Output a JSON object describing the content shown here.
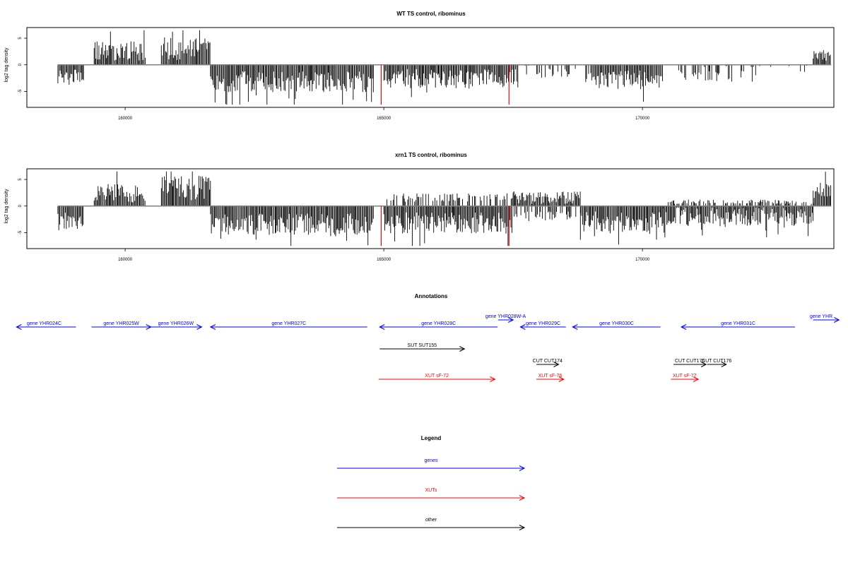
{
  "chart_data": [
    {
      "type": "bar",
      "title": "WT TS control, ribominus",
      "xlabel": "",
      "ylabel": "log2 tag density",
      "xlim": [
        158100,
        173700
      ],
      "ylim": [
        -8,
        7
      ],
      "xticks": [
        160000,
        165000,
        170000
      ],
      "yticks": [
        -5,
        0,
        5
      ],
      "grid": false,
      "segments": [
        {
          "from": 158700,
          "to": 159200,
          "sign": -1,
          "mean": 2.4,
          "jitter": 1.5
        },
        {
          "from": 159200,
          "to": 159400,
          "sign": 0
        },
        {
          "from": 159400,
          "to": 160400,
          "sign": 1,
          "mean": 2.6,
          "jitter": 1.8
        },
        {
          "from": 160400,
          "to": 160700,
          "sign": 0
        },
        {
          "from": 160700,
          "to": 161650,
          "sign": 1,
          "mean": 3.0,
          "jitter": 2.2
        },
        {
          "from": 161650,
          "to": 164800,
          "sign": -1,
          "mean": 3.2,
          "jitter": 2.0
        },
        {
          "from": 164800,
          "to": 165000,
          "sign": 0
        },
        {
          "from": 165000,
          "to": 167600,
          "sign": -1,
          "mean": 2.6,
          "jitter": 1.8
        },
        {
          "from": 167600,
          "to": 169000,
          "sign": -1,
          "mean": 1.2,
          "jitter": 1.5,
          "sparse": 0.25
        },
        {
          "from": 169000,
          "to": 170400,
          "sign": -1,
          "mean": 2.8,
          "jitter": 1.8
        },
        {
          "from": 170400,
          "to": 170700,
          "sign": 0
        },
        {
          "from": 170700,
          "to": 172300,
          "sign": -1,
          "mean": 1.6,
          "jitter": 1.6,
          "sparse": 0.4
        },
        {
          "from": 172300,
          "to": 173300,
          "sign": -1,
          "mean": 0.8,
          "jitter": 1.0,
          "sparse": 0.1
        },
        {
          "from": 173300,
          "to": 173650,
          "sign": 1,
          "mean": 1.8,
          "jitter": 1.2
        }
      ],
      "red_spikes": [
        {
          "x": 164950,
          "y": -7.5
        },
        {
          "x": 167420,
          "y": -7.5
        }
      ]
    },
    {
      "type": "bar",
      "title": "xrn1 TS control, ribominus",
      "xlabel": "",
      "ylabel": "log2 tag density",
      "xlim": [
        158100,
        173700
      ],
      "ylim": [
        -8,
        7
      ],
      "xticks": [
        160000,
        165000,
        170000
      ],
      "yticks": [
        -5,
        0,
        5
      ],
      "grid": false,
      "segments": [
        {
          "from": 158700,
          "to": 159200,
          "sign": -1,
          "mean": 2.8,
          "jitter": 1.8
        },
        {
          "from": 159200,
          "to": 159400,
          "sign": 0
        },
        {
          "from": 159400,
          "to": 160400,
          "sign": 1,
          "mean": 2.4,
          "jitter": 1.8
        },
        {
          "from": 160400,
          "to": 160700,
          "sign": 0
        },
        {
          "from": 160700,
          "to": 161650,
          "sign": 1,
          "mean": 3.4,
          "jitter": 2.3
        },
        {
          "from": 161650,
          "to": 164800,
          "sign": -1,
          "mean": 3.4,
          "jitter": 2.0
        },
        {
          "from": 164800,
          "to": 165000,
          "sign": 0
        },
        {
          "from": 165000,
          "to": 167500,
          "sign": -1,
          "mean": 3.2,
          "jitter": 2.0,
          "dual": 1.6
        },
        {
          "from": 167500,
          "to": 168800,
          "sign": 1,
          "mean": 1.6,
          "jitter": 1.2,
          "dual": 2.0
        },
        {
          "from": 168800,
          "to": 170400,
          "sign": -1,
          "mean": 3.0,
          "jitter": 2.0
        },
        {
          "from": 170400,
          "to": 173300,
          "sign": -1,
          "mean": 2.0,
          "jitter": 1.8,
          "dual": 0.8
        },
        {
          "from": 173300,
          "to": 173650,
          "sign": 1,
          "mean": 2.8,
          "jitter": 1.6
        }
      ],
      "red_spikes": [
        {
          "x": 164950,
          "y": -7.5
        },
        {
          "x": 167420,
          "y": -7.5
        }
      ]
    }
  ],
  "annotations": {
    "title": "Annotations",
    "xlim": [
      158100,
      173700
    ],
    "items": [
      {
        "label": "gene YHR024C",
        "start": 159050,
        "end": 157900,
        "row": 0,
        "kind": "gene"
      },
      {
        "label": "gene YHR025W",
        "start": 159350,
        "end": 160500,
        "row": 0,
        "kind": "gene"
      },
      {
        "label": "gene YHR026W",
        "start": 160480,
        "end": 161480,
        "row": 0,
        "kind": "gene"
      },
      {
        "label": "gene YHR027C",
        "start": 164680,
        "end": 161650,
        "row": 0,
        "kind": "gene"
      },
      {
        "label": "gene YHR028C",
        "start": 167200,
        "end": 164920,
        "row": 0,
        "kind": "gene"
      },
      {
        "label": "gene YHR028W-A",
        "start": 167210,
        "end": 167500,
        "row": -1,
        "kind": "gene"
      },
      {
        "label": "gene YHR029C",
        "start": 168520,
        "end": 167640,
        "row": 0,
        "kind": "gene"
      },
      {
        "label": "gene YHR030C",
        "start": 170350,
        "end": 168650,
        "row": 0,
        "kind": "gene"
      },
      {
        "label": "gene YHR031C",
        "start": 172950,
        "end": 170750,
        "row": 0,
        "kind": "gene"
      },
      {
        "label": "gene YHR",
        "start": 173300,
        "end": 173800,
        "row": -1,
        "kind": "gene"
      },
      {
        "label": "SUT SUT155",
        "start": 164920,
        "end": 166560,
        "row": 1,
        "kind": "other"
      },
      {
        "label": "CUT CUT174",
        "start": 167950,
        "end": 168380,
        "row": 2,
        "kind": "other"
      },
      {
        "label": "CUT CUT175",
        "start": 170600,
        "end": 171230,
        "row": 2,
        "kind": "other"
      },
      {
        "label": "CUT CUT176",
        "start": 171250,
        "end": 171620,
        "row": 2,
        "kind": "other"
      },
      {
        "label": "XUT sF-72",
        "start": 164900,
        "end": 167150,
        "row": 3,
        "kind": "xut"
      },
      {
        "label": "XUT sF-76",
        "start": 167950,
        "end": 168480,
        "row": 3,
        "kind": "xut"
      },
      {
        "label": "XUT sF-77",
        "start": 170550,
        "end": 171080,
        "row": 3,
        "kind": "xut"
      }
    ]
  },
  "legend": {
    "title": "Legend",
    "entries": [
      {
        "label": "genes",
        "kind": "gene"
      },
      {
        "label": "XUTs",
        "kind": "xut"
      },
      {
        "label": "other",
        "kind": "other"
      }
    ]
  },
  "colors": {
    "gene": "#0000ff",
    "xut": "#ff0000",
    "other": "#000000",
    "bars": "#000000",
    "baseline": "#808080",
    "red_spike": "#ff0000"
  }
}
